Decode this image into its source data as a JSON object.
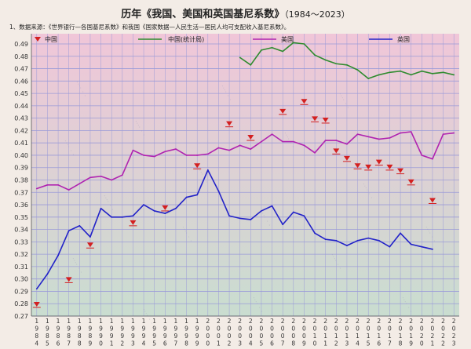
{
  "title": "历年《我国、美国和英国基尼系数》",
  "title_years": "（1984～2023）",
  "note": "1、数据来源：《世界银行—各国基尼系数》和我国《国家数据—人民生活—居民人均可支配收入基尼系数》。",
  "colors": {
    "background": "#f3ece6",
    "plot_bg_top": "#f0c6d8",
    "plot_bg_bottom": "#c9ddd0",
    "grid": "#9b9bd8",
    "china": "#d32020",
    "china_stats": "#2e8b2e",
    "usa": "#b023b0",
    "uk": "#2222c8"
  },
  "chart_data": {
    "type": "line",
    "title": "历年《我国、美国和英国基尼系数》（1984～2023）",
    "xlabel": "",
    "ylabel": "",
    "x": [
      1984,
      1985,
      1986,
      1987,
      1988,
      1989,
      1990,
      1991,
      1992,
      1993,
      1994,
      1995,
      1996,
      1997,
      1998,
      1999,
      2000,
      2001,
      2002,
      2003,
      2004,
      2005,
      2006,
      2007,
      2008,
      2009,
      2010,
      2011,
      2012,
      2013,
      2014,
      2015,
      2016,
      2017,
      2018,
      2019,
      2020,
      2021,
      2022,
      2023
    ],
    "x_tick_labels": [
      "1984",
      "1985",
      "1986",
      "1987",
      "1988",
      "1989",
      "1990",
      "1991",
      "1992",
      "1993",
      "1994",
      "1995",
      "1996",
      "1997",
      "1998",
      "1999",
      "2000",
      "2001",
      "2002",
      "2003",
      "2004",
      "2005",
      "2006",
      "2007",
      "2008",
      "2009",
      "2010",
      "2011",
      "2012",
      "2013",
      "2014",
      "2015",
      "2016",
      "2017",
      "2018",
      "2019",
      "2020",
      "2021",
      "2022",
      "2023"
    ],
    "ylim": [
      0.27,
      0.49
    ],
    "y_ticks": [
      "0.27",
      "0.28",
      "0.29",
      "0.30",
      "0.31",
      "0.32",
      "0.33",
      "0.34",
      "0.35",
      "0.36",
      "0.37",
      "0.38",
      "0.39",
      "0.40",
      "0.41",
      "0.42",
      "0.43",
      "0.44",
      "0.45",
      "0.46",
      "0.47",
      "0.48",
      "0.49"
    ],
    "grid": true,
    "legend_position": "top",
    "series": [
      {
        "name": "中国",
        "kind": "marker",
        "color": "#d32020",
        "values": [
          0.277,
          null,
          null,
          0.297,
          null,
          0.325,
          null,
          null,
          null,
          0.343,
          null,
          null,
          0.355,
          null,
          null,
          0.389,
          null,
          null,
          0.423,
          null,
          0.412,
          null,
          null,
          0.433,
          null,
          0.441,
          0.427,
          0.426,
          0.401,
          0.395,
          0.389,
          0.388,
          0.392,
          0.388,
          0.385,
          0.376,
          null,
          0.361,
          null,
          null
        ]
      },
      {
        "name": "中国(统计局)",
        "kind": "line",
        "color": "#2e8b2e",
        "values": [
          null,
          null,
          null,
          null,
          null,
          null,
          null,
          null,
          null,
          null,
          null,
          null,
          null,
          null,
          null,
          null,
          null,
          null,
          null,
          0.479,
          0.473,
          0.485,
          0.487,
          0.484,
          0.491,
          0.49,
          0.481,
          0.477,
          0.474,
          0.473,
          0.469,
          0.462,
          0.465,
          0.467,
          0.468,
          0.465,
          0.468,
          0.466,
          0.467,
          0.465
        ]
      },
      {
        "name": "美国",
        "kind": "line",
        "color": "#b023b0",
        "values": [
          0.373,
          0.376,
          0.376,
          0.372,
          0.377,
          0.382,
          0.383,
          0.38,
          0.384,
          0.404,
          0.4,
          0.399,
          0.403,
          0.405,
          0.4,
          0.4,
          0.401,
          0.406,
          0.404,
          0.408,
          0.405,
          0.411,
          0.417,
          0.411,
          0.411,
          0.408,
          0.402,
          0.412,
          0.412,
          0.409,
          0.417,
          0.415,
          0.413,
          0.414,
          0.418,
          0.419,
          0.4,
          0.397,
          0.417,
          0.418
        ]
      },
      {
        "name": "英国",
        "kind": "line",
        "color": "#2222c8",
        "values": [
          0.292,
          0.304,
          0.319,
          0.339,
          0.343,
          0.334,
          0.357,
          0.35,
          0.35,
          0.351,
          0.36,
          0.355,
          0.353,
          0.357,
          0.366,
          0.368,
          0.388,
          0.371,
          0.351,
          0.349,
          0.348,
          0.355,
          0.359,
          0.344,
          0.354,
          0.351,
          0.337,
          0.332,
          0.331,
          0.327,
          0.331,
          0.333,
          0.331,
          0.326,
          0.337,
          0.328,
          0.326,
          0.324,
          null,
          null
        ]
      }
    ]
  }
}
